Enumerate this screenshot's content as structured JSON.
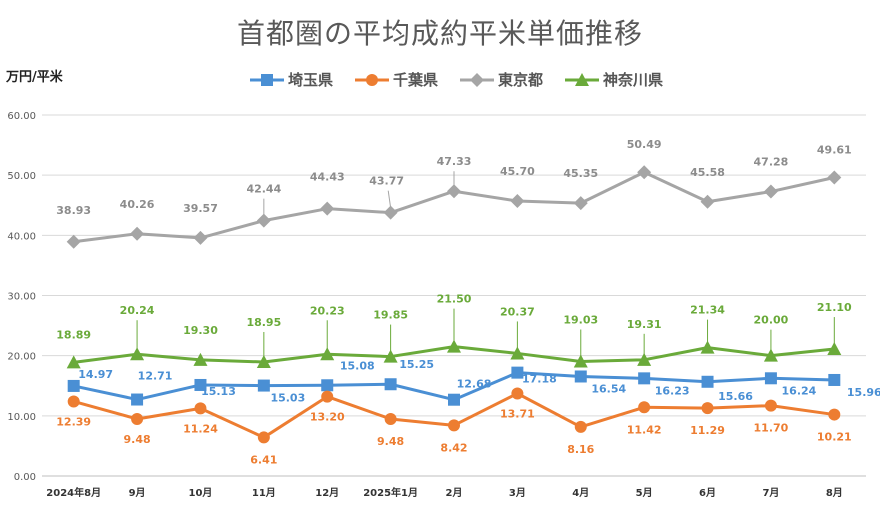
{
  "chart_data": {
    "type": "line",
    "title": "首都圏の平均成約平米単価推移",
    "ylabel": "万円/平米",
    "xlabel": "",
    "categories": [
      "2024年8月",
      "9月",
      "10月",
      "11月",
      "12月",
      "2025年1月",
      "2月",
      "3月",
      "4月",
      "5月",
      "6月",
      "7月",
      "8月"
    ],
    "y_ticks": [
      "0.00",
      "10.00",
      "20.00",
      "30.00",
      "40.00",
      "50.00",
      "60.00"
    ],
    "ylim": [
      0,
      60
    ],
    "grid": true,
    "legend_position": "top",
    "series": [
      {
        "name": "埼玉県",
        "color": "#4a8fd4",
        "marker": "square",
        "values": [
          14.97,
          12.71,
          15.13,
          15.03,
          15.08,
          15.25,
          12.68,
          17.18,
          16.54,
          16.23,
          15.66,
          16.24,
          15.96
        ],
        "labels": [
          "14.97",
          "12.71",
          "15.13",
          "15.03",
          "15.08",
          "15.25",
          "12.68",
          "17.18",
          "16.54",
          "16.23",
          "15.66",
          "16.24",
          "15.96"
        ]
      },
      {
        "name": "千葉県",
        "color": "#ed7d31",
        "marker": "circle",
        "values": [
          12.39,
          9.48,
          11.24,
          6.41,
          13.2,
          9.48,
          8.42,
          13.71,
          8.16,
          11.42,
          11.29,
          11.7,
          10.21
        ],
        "labels": [
          "12.39",
          "9.48",
          "11.24",
          "6.41",
          "13.20",
          "9.48",
          "8.42",
          "13.71",
          "8.16",
          "11.42",
          "11.29",
          "11.70",
          "10.21"
        ]
      },
      {
        "name": "東京都",
        "color": "#a5a5a5",
        "marker": "diamond",
        "values": [
          38.93,
          40.26,
          39.57,
          42.44,
          44.43,
          43.77,
          47.33,
          45.7,
          45.35,
          50.49,
          45.58,
          47.28,
          49.61
        ],
        "labels": [
          "38.93",
          "40.26",
          "39.57",
          "42.44",
          "44.43",
          "43.77",
          "47.33",
          "45.70",
          "45.35",
          "50.49",
          "45.58",
          "47.28",
          "49.61"
        ]
      },
      {
        "name": "神奈川県",
        "color": "#6aaa3a",
        "marker": "triangle",
        "values": [
          18.89,
          20.24,
          19.3,
          18.95,
          20.23,
          19.85,
          21.5,
          20.37,
          19.03,
          19.31,
          21.34,
          20.0,
          21.1
        ],
        "labels": [
          "18.89",
          "20.24",
          "19.30",
          "18.95",
          "20.23",
          "19.85",
          "21.50",
          "20.37",
          "19.03",
          "19.31",
          "21.34",
          "20.00",
          "21.10"
        ]
      }
    ]
  }
}
